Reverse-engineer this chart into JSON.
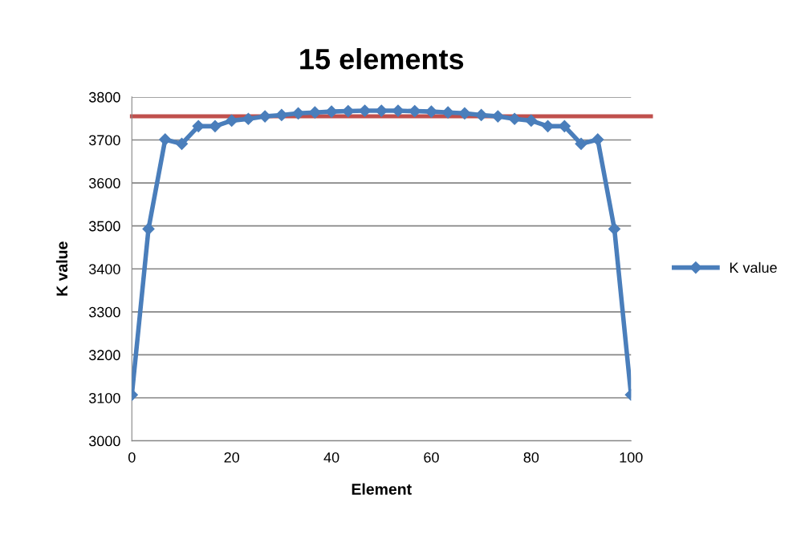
{
  "chart_data": {
    "type": "line",
    "title": "15 elements",
    "xlabel": "Element",
    "ylabel": "K value",
    "x": [
      0,
      3.33,
      6.67,
      10,
      13.33,
      16.67,
      20,
      23.33,
      26.67,
      30,
      33.33,
      36.67,
      40,
      43.33,
      46.67,
      50,
      53.33,
      56.67,
      60,
      63.33,
      66.67,
      70,
      73.33,
      76.67,
      80,
      83.33,
      86.67,
      90,
      93.33,
      96.67,
      100
    ],
    "series": [
      {
        "name": "K value",
        "color": "#4a7ebb",
        "values": [
          3107,
          3493,
          3701,
          3691,
          3732,
          3732,
          3745,
          3749,
          3755,
          3758,
          3762,
          3764,
          3766,
          3767,
          3768,
          3768,
          3768,
          3767,
          3766,
          3764,
          3762,
          3758,
          3755,
          3749,
          3745,
          3732,
          3732,
          3691,
          3701,
          3493,
          3107
        ]
      }
    ],
    "ref_lines": [
      {
        "axis": "y",
        "value": 3755,
        "color": "#c0504d"
      }
    ],
    "xlim": [
      0,
      100
    ],
    "xticks": [
      0,
      20,
      40,
      60,
      80,
      100
    ],
    "ylim": [
      3000,
      3800
    ],
    "yticks": [
      3000,
      3100,
      3200,
      3300,
      3400,
      3500,
      3600,
      3700,
      3800
    ],
    "grid": "y",
    "legend": "right",
    "marker": "diamond",
    "line_style": "solid"
  }
}
